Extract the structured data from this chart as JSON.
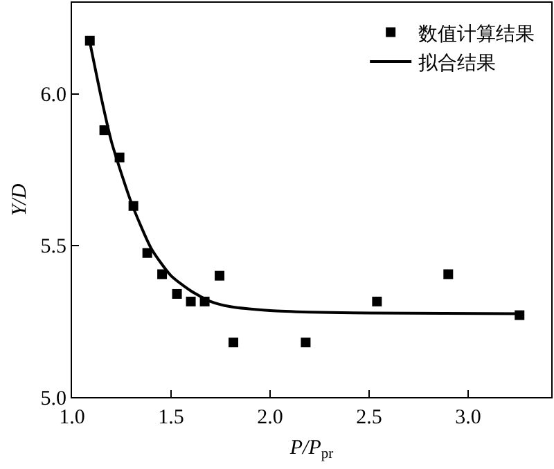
{
  "chart_data": {
    "type": "scatter",
    "xlabel": "P/P$_{pr}$",
    "ylabel": "Y/D",
    "xlim": [
      1.0,
      3.42
    ],
    "ylim": [
      5.0,
      6.3
    ],
    "xticks": [
      {
        "value": 1.0,
        "label": "1.0"
      },
      1.5,
      {
        "value": 2.0,
        "label": "2.0"
      },
      2.5,
      {
        "value": 3.0,
        "label": "3.0"
      }
    ],
    "yticks": [
      {
        "value": 5.0,
        "label": "5.0"
      },
      5.5,
      {
        "value": 6.0,
        "label": "6.0"
      }
    ],
    "legend": "top right",
    "series": [
      {
        "name": "数值计算结果",
        "marker": "square",
        "color": "#000000",
        "x": [
          1.09,
          1.163,
          1.24,
          1.31,
          1.38,
          1.455,
          1.53,
          1.6,
          1.67,
          1.745,
          1.815,
          2.18,
          2.54,
          2.9,
          3.26
        ],
        "values": [
          6.175,
          5.88,
          5.79,
          5.63,
          5.475,
          5.405,
          5.34,
          5.315,
          5.315,
          5.4,
          5.18,
          5.18,
          5.315,
          5.405,
          5.27
        ]
      },
      {
        "name": "拟合结果",
        "type": "line",
        "marker": "none",
        "line_style": "solid",
        "color": "#000000",
        "x": [
          1.09,
          1.15,
          1.2,
          1.3,
          1.4,
          1.5,
          1.6,
          1.7,
          1.8,
          2.0,
          2.2,
          2.5,
          3.26
        ],
        "values": [
          6.17,
          5.98,
          5.84,
          5.64,
          5.49,
          5.4,
          5.35,
          5.315,
          5.298,
          5.285,
          5.28,
          5.277,
          5.275
        ]
      }
    ]
  }
}
